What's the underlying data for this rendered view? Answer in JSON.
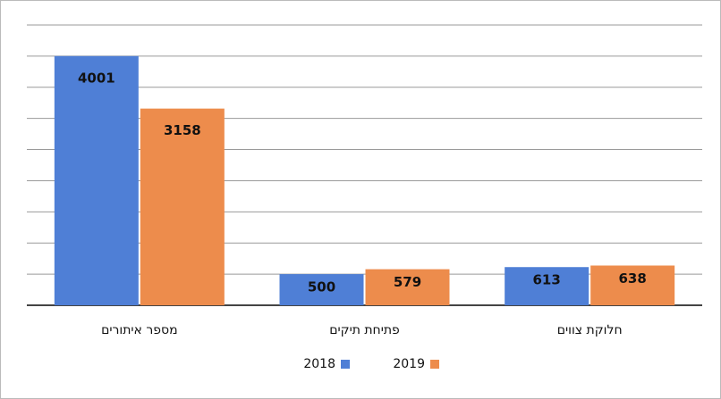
{
  "chart_data": {
    "type": "bar",
    "categories": [
      "מספר איתורים",
      "פתיחת תיקים",
      "חלוקת צווים"
    ],
    "series": [
      {
        "name": "2018",
        "color": "#4f7fd6",
        "values": [
          4001,
          500,
          613
        ]
      },
      {
        "name": "2019",
        "color": "#ed8c4c",
        "values": [
          3158,
          579,
          638
        ]
      }
    ],
    "ylim": [
      0,
      4500
    ],
    "yticks": [
      0,
      500,
      1000,
      1500,
      2000,
      2500,
      3000,
      3500,
      4000,
      4500
    ],
    "grid": true
  }
}
